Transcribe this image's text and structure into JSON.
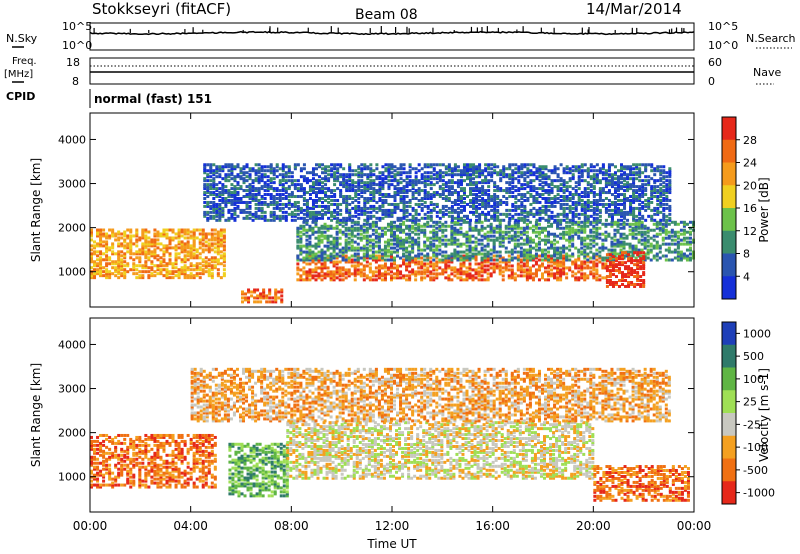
{
  "header": {
    "title": "Stokkseyri (fitACF)",
    "beam": "Beam 08",
    "date": "14/Mar/2014"
  },
  "panels": {
    "nsky": {
      "label": "N.Sky",
      "ticks": [
        "10^5",
        "10^0"
      ]
    },
    "nsearch": {
      "label": "N.Search",
      "ticks": [
        "10^5",
        "10^0"
      ]
    },
    "freq": {
      "label_line1": "Freq.",
      "label_line2": "[MHz]",
      "ticks": [
        "18",
        "8"
      ]
    },
    "nave": {
      "label": "Nave",
      "ticks": [
        "60",
        "0"
      ]
    },
    "cpid": {
      "label": "CPID",
      "value": "normal (fast) 151"
    }
  },
  "chart_data": [
    {
      "type": "heatmap",
      "ylabel": "Slant Range [km]",
      "xlabel": "",
      "ylim": [
        200,
        4600
      ],
      "yticks": [
        "1000",
        "2000",
        "3000",
        "4000"
      ],
      "xticks": [
        "00:00",
        "04:00",
        "08:00",
        "12:00",
        "16:00",
        "20:00",
        "00:00"
      ],
      "colorbar": {
        "label": "Power [dB]",
        "ticks": [
          "4",
          "8",
          "12",
          "16",
          "20",
          "24",
          "28"
        ],
        "colors": [
          "#1530d8",
          "#2a55b0",
          "#3a8c6e",
          "#6cc24a",
          "#f0d020",
          "#f59b1c",
          "#f06a14",
          "#e6281a"
        ]
      },
      "bands": [
        {
          "x_start_h": 0.0,
          "x_end_h": 5.4,
          "range_km": [
            900,
            2000
          ],
          "power_db": 20
        },
        {
          "x_start_h": 6.0,
          "x_end_h": 7.6,
          "range_km": [
            350,
            650
          ],
          "power_db": 26
        },
        {
          "x_start_h": 8.2,
          "x_end_h": 20.5,
          "range_km": [
            850,
            1400
          ],
          "power_db": 24
        },
        {
          "x_start_h": 8.2,
          "x_end_h": 24.0,
          "range_km": [
            1300,
            2200
          ],
          "power_db": 10
        },
        {
          "x_start_h": 20.5,
          "x_end_h": 22.0,
          "range_km": [
            700,
            1500
          ],
          "power_db": 28
        },
        {
          "x_start_h": 4.5,
          "x_end_h": 23.0,
          "range_km": [
            2200,
            3500
          ],
          "power_db": 6
        }
      ]
    },
    {
      "type": "heatmap",
      "ylabel": "Slant Range [km]",
      "xlabel": "Time UT",
      "ylim": [
        200,
        4600
      ],
      "yticks": [
        "1000",
        "2000",
        "3000",
        "4000"
      ],
      "xticks": [
        "00:00",
        "04:00",
        "08:00",
        "12:00",
        "16:00",
        "20:00",
        "00:00"
      ],
      "colorbar": {
        "label": "Velocity [m s-1]",
        "ticks": [
          "1000",
          "500",
          "100",
          "25",
          "-25",
          "-100",
          "-500",
          "-1000"
        ],
        "colors": [
          "#1e3fb8",
          "#2f7a6a",
          "#5fb544",
          "#9fdf55",
          "#c8c8c0",
          "#f4a020",
          "#f07012",
          "#e6281a"
        ]
      },
      "bands": [
        {
          "x_start_h": 0.0,
          "x_end_h": 5.0,
          "range_km": [
            800,
            2000
          ],
          "velocity": -400
        },
        {
          "x_start_h": 5.5,
          "x_end_h": 7.8,
          "range_km": [
            600,
            1800
          ],
          "velocity": 300
        },
        {
          "x_start_h": 7.8,
          "x_end_h": 20.0,
          "range_km": [
            1000,
            2300
          ],
          "velocity": 0
        },
        {
          "x_start_h": 20.0,
          "x_end_h": 23.8,
          "range_km": [
            500,
            1300
          ],
          "velocity": -500
        },
        {
          "x_start_h": 4.0,
          "x_end_h": 23.0,
          "range_km": [
            2300,
            3500
          ],
          "velocity": -80
        }
      ]
    }
  ],
  "colors": {
    "line": "#000000",
    "background": "#ffffff"
  }
}
